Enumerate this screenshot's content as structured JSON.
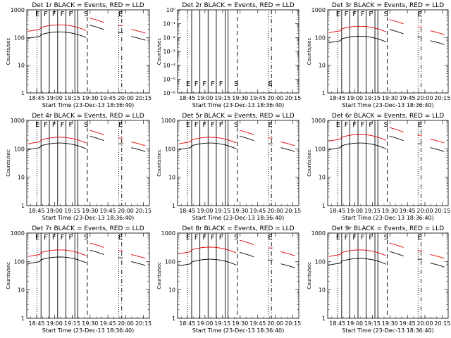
{
  "chart_data": [
    {
      "type": "line",
      "title": "Det 1r BLACK = Events, RED = LLD",
      "ylabel": "Counts/sec",
      "xlabel": "Start Time (23-Dec-13 18:36:40)",
      "y_scale": "log",
      "ylim": [
        1,
        1000
      ],
      "yticks": [
        "1",
        "10",
        "100",
        "1000"
      ],
      "xticks": [
        "18:45",
        "19:00",
        "19:15",
        "19:30",
        "19:45",
        "20:00",
        "20:15"
      ],
      "markers": [
        "E",
        "F",
        "F",
        "F",
        "F",
        "S",
        "E"
      ],
      "series": [
        {
          "name": "Events",
          "color": "#000000",
          "level": 100
        },
        {
          "name": "LLD",
          "color": "#e00000",
          "level": 180
        }
      ]
    },
    {
      "type": "line",
      "title": "Det 2r BLACK = Events, RED = LLD",
      "ylabel": "Counts/sec",
      "xlabel": "Start Time (23-Dec-13 18:36:40)",
      "y_scale": "log",
      "ylim": [
        1,
        1e-06
      ],
      "yticks": [
        "10⁻⁶",
        "10⁻⁵",
        "10⁻⁴",
        "10⁻³",
        "10⁻²",
        "10⁻¹",
        "10⁰"
      ],
      "xticks": [
        "18:45",
        "19:00",
        "19:15",
        "19:30",
        "19:45",
        "20:00",
        "20:15"
      ],
      "markers": [
        "E",
        "F",
        "F",
        "F",
        "F",
        "S",
        "E"
      ],
      "series": []
    },
    {
      "type": "line",
      "title": "Det 3r BLACK = Events, RED = LLD",
      "ylabel": "Counts/sec",
      "xlabel": "Start Time (23-Dec-13 18:36:40)",
      "y_scale": "log",
      "ylim": [
        1,
        1000
      ],
      "yticks": [
        "1",
        "10",
        "100",
        "1000"
      ],
      "xticks": [
        "18:45",
        "19:00",
        "19:15",
        "19:30",
        "19:45",
        "20:00",
        "20:15"
      ],
      "markers": [
        "E",
        "F",
        "F",
        "F",
        "F",
        "S",
        "E"
      ],
      "series": [
        {
          "name": "Events",
          "color": "#000000",
          "level": 70
        },
        {
          "name": "LLD",
          "color": "#e00000",
          "level": 160
        }
      ]
    },
    {
      "type": "line",
      "title": "Det 4r BLACK = Events, RED = LLD",
      "ylabel": "Counts/sec",
      "xlabel": "Start Time (23-Dec-13 18:36:40)",
      "y_scale": "log",
      "ylim": [
        1,
        1000
      ],
      "yticks": [
        "1",
        "10",
        "100",
        "1000"
      ],
      "xticks": [
        "18:45",
        "19:00",
        "19:15",
        "19:30",
        "19:45",
        "20:00",
        "20:15"
      ],
      "markers": [
        "E",
        "F",
        "F",
        "F",
        "F",
        "S",
        "E"
      ],
      "series": [
        {
          "name": "Events",
          "color": "#000000",
          "level": 100
        },
        {
          "name": "LLD",
          "color": "#e00000",
          "level": 160
        }
      ]
    },
    {
      "type": "line",
      "title": "Det 5r BLACK = Events, RED = LLD",
      "ylabel": "Counts/sec",
      "xlabel": "Start Time (23-Dec-13 18:36:40)",
      "y_scale": "log",
      "ylim": [
        1,
        1000
      ],
      "yticks": [
        "1",
        "10",
        "100",
        "1000"
      ],
      "xticks": [
        "18:45",
        "19:00",
        "19:15",
        "19:30",
        "19:45",
        "20:00",
        "20:15"
      ],
      "markers": [
        "E",
        "F",
        "F",
        "F",
        "F",
        "S",
        "E"
      ],
      "series": [
        {
          "name": "Events",
          "color": "#000000",
          "level": 100
        },
        {
          "name": "LLD",
          "color": "#e00000",
          "level": 160
        }
      ]
    },
    {
      "type": "line",
      "title": "Det 6r BLACK = Events, RED = LLD",
      "ylabel": "Counts/sec",
      "xlabel": "Start Time (23-Dec-13 18:36:40)",
      "y_scale": "log",
      "ylim": [
        1,
        1000
      ],
      "yticks": [
        "1",
        "10",
        "100",
        "1000"
      ],
      "xticks": [
        "18:45",
        "19:00",
        "19:15",
        "19:30",
        "19:45",
        "20:00",
        "20:15"
      ],
      "markers": [
        "E",
        "F",
        "F",
        "F",
        "F",
        "S",
        "E"
      ],
      "series": [
        {
          "name": "Events",
          "color": "#000000",
          "level": 100
        },
        {
          "name": "LLD",
          "color": "#e00000",
          "level": 200
        }
      ]
    },
    {
      "type": "line",
      "title": "Det 7r BLACK = Events, RED = LLD",
      "ylabel": "Counts/sec",
      "xlabel": "Start Time (23-Dec-13 18:36:40)",
      "y_scale": "log",
      "ylim": [
        1,
        1000
      ],
      "yticks": [
        "1",
        "10",
        "100",
        "1000"
      ],
      "xticks": [
        "18:45",
        "19:00",
        "19:15",
        "19:30",
        "19:45",
        "20:00",
        "20:15"
      ],
      "markers": [
        "E",
        "F",
        "F",
        "F",
        "F",
        "S",
        "E"
      ],
      "series": [
        {
          "name": "Events",
          "color": "#000000",
          "level": 90
        },
        {
          "name": "LLD",
          "color": "#e00000",
          "level": 160
        }
      ]
    },
    {
      "type": "line",
      "title": "Det 8r BLACK = Events, RED = LLD",
      "ylabel": "Counts/sec",
      "xlabel": "Start Time (23-Dec-13 18:36:40)",
      "y_scale": "log",
      "ylim": [
        1,
        1000
      ],
      "yticks": [
        "1",
        "10",
        "100",
        "1000"
      ],
      "xticks": [
        "18:45",
        "19:00",
        "19:15",
        "19:30",
        "19:45",
        "20:00",
        "20:15"
      ],
      "markers": [
        "E",
        "F",
        "F",
        "F",
        "F",
        "S",
        "E"
      ],
      "series": [
        {
          "name": "Events",
          "color": "#000000",
          "level": 75
        },
        {
          "name": "LLD",
          "color": "#e00000",
          "level": 200
        }
      ]
    },
    {
      "type": "line",
      "title": "Det 9r BLACK = Events, RED = LLD",
      "ylabel": "Counts/sec",
      "xlabel": "Start Time (23-Dec-13 18:36:40)",
      "y_scale": "log",
      "ylim": [
        1,
        1000
      ],
      "yticks": [
        "1",
        "10",
        "100",
        "1000"
      ],
      "xticks": [
        "18:45",
        "19:00",
        "19:15",
        "19:30",
        "19:45",
        "20:00",
        "20:15"
      ],
      "markers": [
        "E",
        "F",
        "F",
        "F",
        "F",
        "S",
        "E"
      ],
      "series": [
        {
          "name": "Events",
          "color": "#000000",
          "level": 80
        },
        {
          "name": "LLD",
          "color": "#e00000",
          "level": 160
        }
      ]
    }
  ]
}
